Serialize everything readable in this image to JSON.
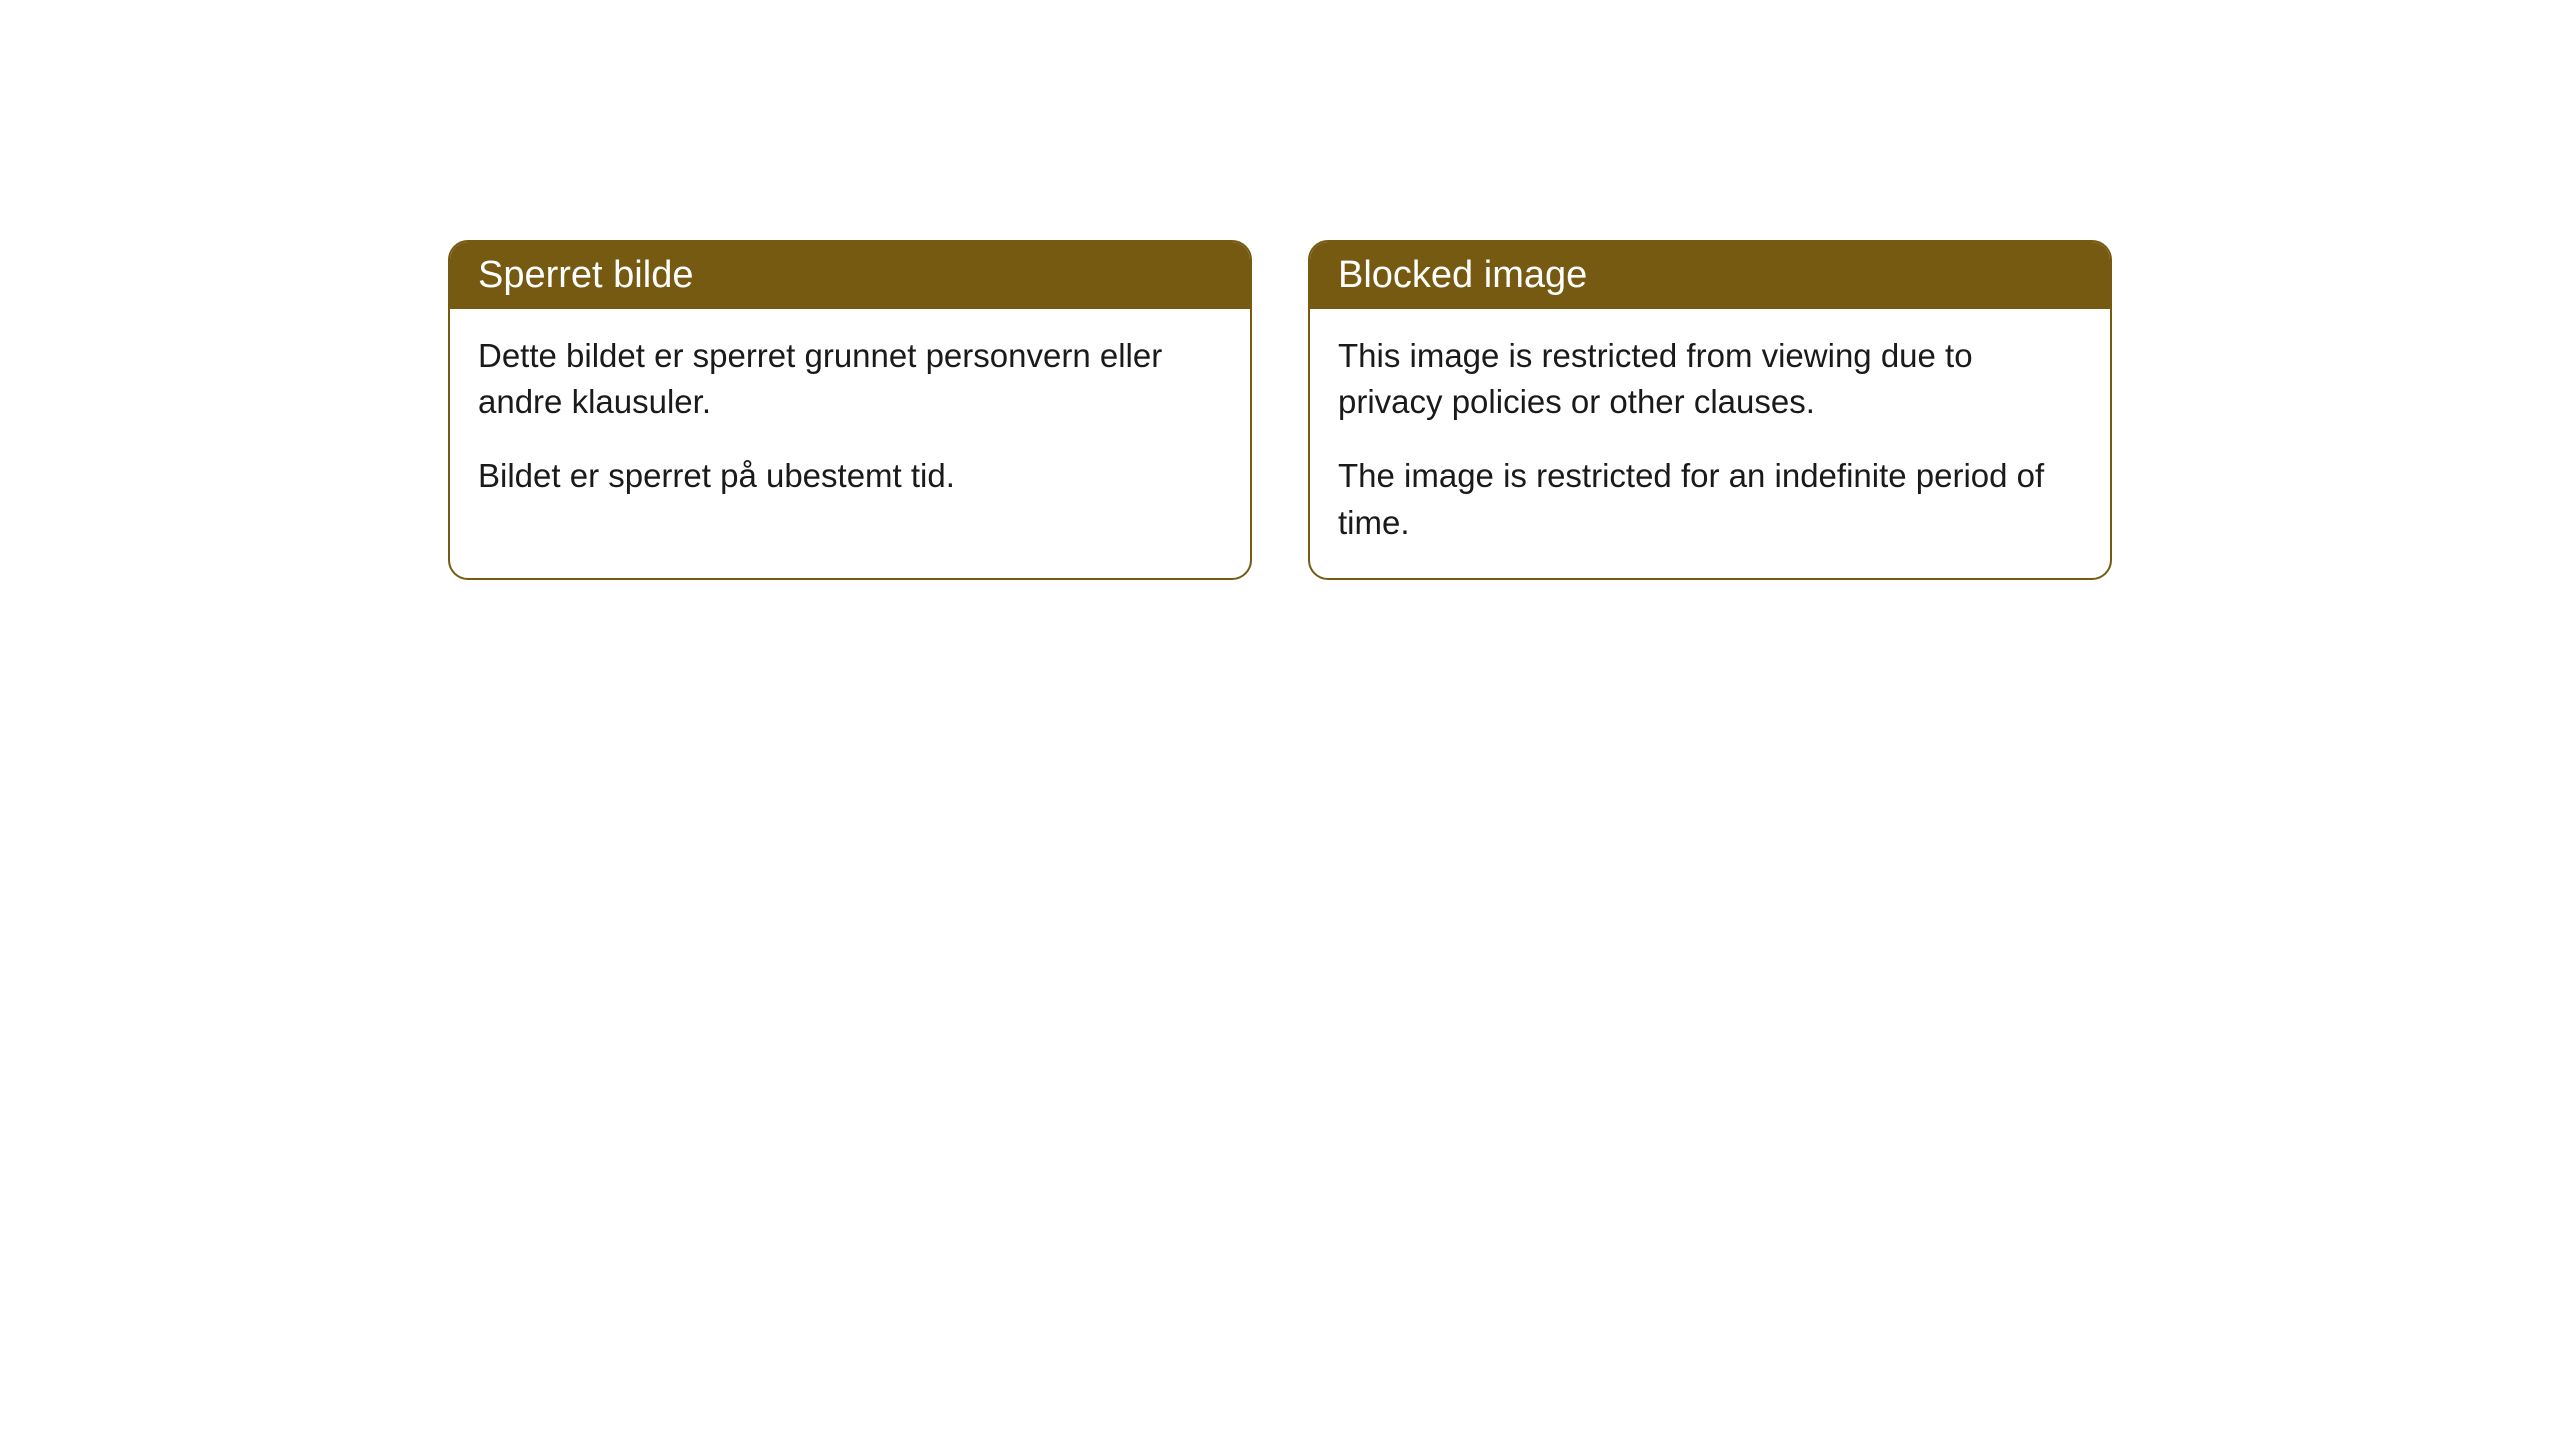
{
  "cards": [
    {
      "title": "Sperret bilde",
      "paragraph1": "Dette bildet er sperret grunnet personvern eller andre klausuler.",
      "paragraph2": "Bildet er sperret på ubestemt tid."
    },
    {
      "title": "Blocked image",
      "paragraph1": "This image is restricted from viewing due to privacy policies or other clauses.",
      "paragraph2": "The image is restricted for an indefinite period of time."
    }
  ],
  "style": {
    "header_bg_color": "#765a12",
    "header_text_color": "#ffffff",
    "border_color": "#765a12",
    "body_bg_color": "#ffffff",
    "body_text_color": "#1a1a1a",
    "border_radius": 20,
    "header_fontsize": 38,
    "body_fontsize": 33
  }
}
